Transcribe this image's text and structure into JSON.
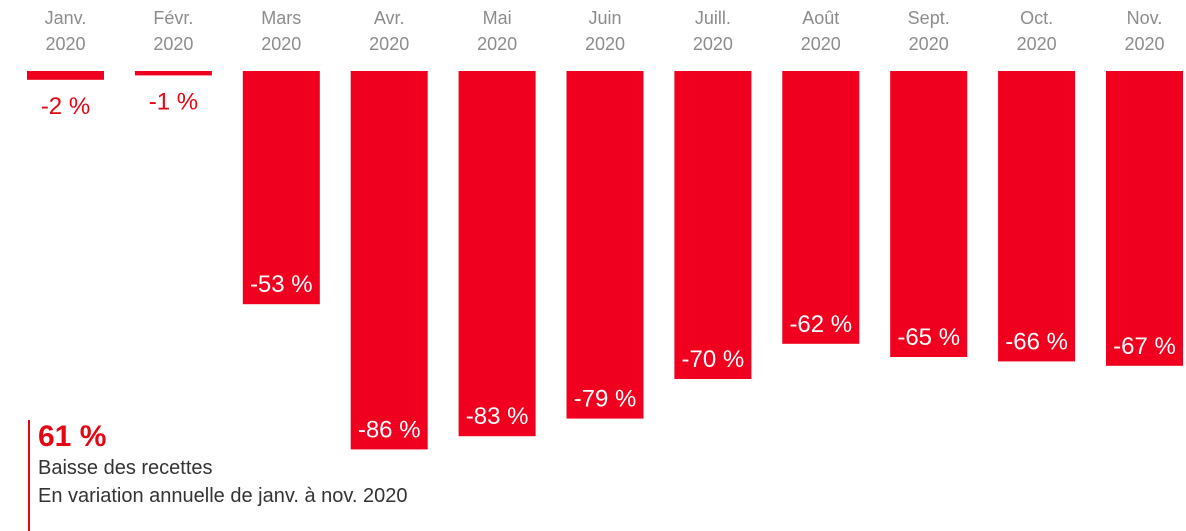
{
  "chart_data": {
    "type": "bar",
    "categories": [
      [
        "Janv.",
        "2020"
      ],
      [
        "Févr.",
        "2020"
      ],
      [
        "Mars",
        "2020"
      ],
      [
        "Avr.",
        "2020"
      ],
      [
        "Mai",
        "2020"
      ],
      [
        "Juin",
        "2020"
      ],
      [
        "Juill.",
        "2020"
      ],
      [
        "Août",
        "2020"
      ],
      [
        "Sept.",
        "2020"
      ],
      [
        "Oct.",
        "2020"
      ],
      [
        "Nov.",
        "2020"
      ]
    ],
    "values": [
      -2,
      -1,
      -53,
      -86,
      -83,
      -79,
      -70,
      -62,
      -65,
      -66,
      -67
    ],
    "data_labels": [
      "-2 %",
      "-1 %",
      "-53 %",
      "-86 %",
      "-83 %",
      "-79 %",
      "-70 %",
      "-62 %",
      "-65 %",
      "-66 %",
      "-67 %"
    ],
    "unit": "%",
    "ylim": [
      -100,
      0
    ],
    "xaxis_position": "top",
    "grid": false,
    "bar_color": "#f0001e",
    "inside_label_color": "#ffffff",
    "outside_label_color": "#e30613"
  },
  "kpi": {
    "value": "61 %",
    "label": "Baisse des recettes",
    "sub": "En variation annuelle de janv. à nov. 2020"
  }
}
